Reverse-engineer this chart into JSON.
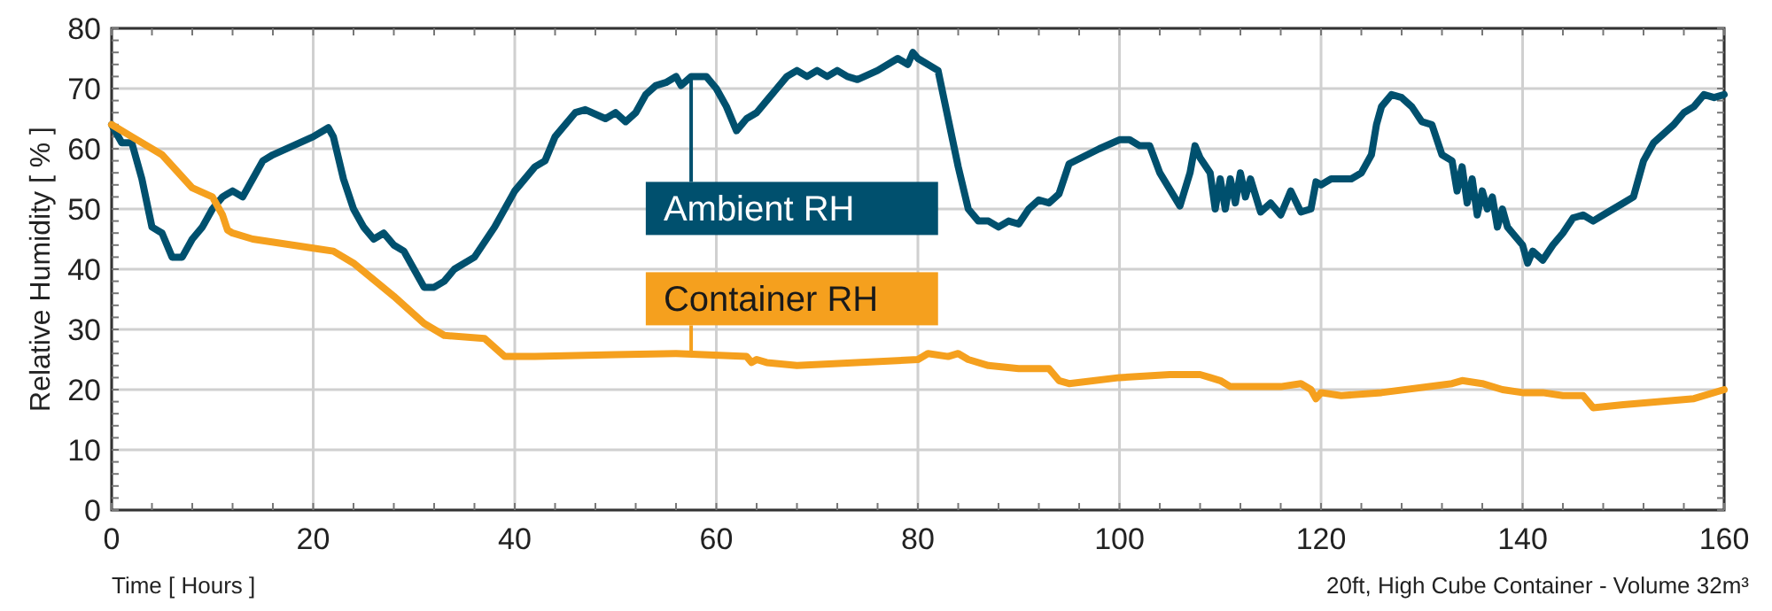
{
  "chart_data": {
    "type": "line",
    "xlabel": "Time [ Hours ]",
    "ylabel": "Relative Humidity [ % ]",
    "annotations": [
      "20ft, High Cube Container - Volume 32m³"
    ],
    "xlim": [
      0,
      160
    ],
    "ylim": [
      0,
      80
    ],
    "xticks": [
      0,
      20,
      40,
      60,
      80,
      100,
      120,
      140,
      160
    ],
    "yticks": [
      0,
      10,
      20,
      30,
      40,
      50,
      60,
      70,
      80
    ],
    "grid": true,
    "marker": "none",
    "line_style": "solid",
    "series": [
      {
        "name": "Ambient RH",
        "color": "#00506e",
        "x": [
          0,
          1,
          2,
          3,
          4,
          5,
          6,
          7,
          8,
          9,
          10,
          11,
          12,
          13,
          14,
          15,
          16,
          18,
          20,
          21.5,
          22,
          23,
          24,
          25,
          26,
          27,
          28,
          29,
          30,
          31,
          32,
          33,
          34,
          36,
          38,
          40,
          42,
          43,
          44,
          46,
          47,
          49,
          50,
          51,
          52,
          53,
          54,
          55,
          56,
          56.5,
          57.5,
          59,
          60,
          61,
          62,
          63,
          64,
          65,
          66,
          67,
          68,
          69,
          70,
          71,
          72,
          73,
          74,
          76,
          78,
          79,
          79.5,
          80,
          82,
          83,
          84,
          85,
          86,
          87,
          88,
          89,
          90,
          91,
          92,
          93,
          94,
          95,
          98,
          100,
          101,
          102,
          103,
          104,
          106,
          107,
          107.5,
          108,
          109,
          109.5,
          110,
          110.5,
          111,
          111.5,
          112,
          112.5,
          113,
          114,
          115,
          116,
          117,
          118,
          119,
          119.5,
          120,
          121,
          123,
          124,
          125,
          125.5,
          126,
          127,
          128,
          129,
          130,
          131,
          132,
          133,
          133.5,
          134,
          134.5,
          135,
          135.5,
          136,
          136.5,
          137,
          137.5,
          138,
          138.5,
          139,
          140,
          140.5,
          141,
          142,
          143,
          144,
          145,
          146,
          147,
          148,
          150,
          151,
          152,
          153,
          155,
          156,
          157,
          158,
          159,
          160
        ],
        "values": [
          64,
          61,
          61,
          55,
          47,
          46,
          42,
          42,
          45,
          47,
          50,
          52,
          53,
          52,
          55,
          58,
          59,
          60.5,
          62,
          63.5,
          62,
          55,
          50,
          47,
          45,
          46,
          44,
          43,
          40,
          37,
          37,
          38,
          40,
          42,
          47,
          53,
          57,
          58,
          62,
          66,
          66.5,
          65,
          66,
          64.5,
          66,
          69,
          70.5,
          71,
          72,
          70.5,
          72,
          72,
          70,
          67,
          63,
          65,
          66,
          68,
          70,
          72,
          73,
          72,
          73,
          72,
          73,
          72,
          71.5,
          73,
          75,
          74,
          76,
          75,
          73,
          65,
          57,
          50,
          48,
          48,
          47,
          48,
          47.5,
          50,
          51.5,
          51,
          52.5,
          57.5,
          60,
          61.5,
          61.5,
          60.5,
          60.5,
          56,
          50.5,
          56,
          60.5,
          58.5,
          56,
          50,
          55,
          50,
          55,
          51,
          56,
          52,
          55,
          49.5,
          51,
          49,
          53,
          49.5,
          50,
          54.5,
          54,
          55,
          55,
          56,
          59,
          64,
          67,
          69,
          68.5,
          67,
          64.5,
          64,
          59,
          58,
          53,
          57,
          51,
          55,
          49,
          53,
          50,
          52,
          47,
          50,
          47,
          46,
          44,
          41,
          43,
          41.5,
          44,
          46,
          48.5,
          49,
          48,
          49,
          51,
          52,
          58,
          61,
          64,
          66,
          67,
          69,
          68.5,
          69
        ]
      },
      {
        "name": "Container RH",
        "color": "#f5a01e",
        "x": [
          0,
          2,
          5,
          8,
          10,
          11,
          11.5,
          12,
          14,
          20,
          22,
          24,
          28,
          31,
          33,
          37,
          39,
          40,
          42,
          50,
          56,
          63,
          63.5,
          64,
          65,
          68,
          80,
          81,
          83,
          84,
          85,
          87,
          90,
          93,
          94,
          95,
          100,
          105,
          108,
          109,
          110,
          111,
          116,
          118,
          119,
          119.5,
          120,
          122,
          126,
          133,
          134,
          136,
          138,
          140,
          142,
          144,
          146,
          147,
          150,
          157,
          160
        ],
        "values": [
          64,
          62,
          59,
          53.5,
          52,
          49,
          46.5,
          46,
          45,
          43.5,
          43,
          41,
          35.5,
          31,
          29,
          28.5,
          25.5,
          25.5,
          25.5,
          25.8,
          26,
          25.5,
          24.5,
          25,
          24.5,
          24,
          25,
          26,
          25.5,
          26,
          25,
          24,
          23.5,
          23.5,
          21.5,
          21,
          22,
          22.5,
          22.5,
          22,
          21.5,
          20.5,
          20.5,
          21,
          20,
          18.5,
          19.5,
          19,
          19.5,
          21,
          21.5,
          21,
          20,
          19.5,
          19.5,
          19,
          19,
          17,
          17.5,
          18.5,
          20
        ]
      }
    ]
  }
}
